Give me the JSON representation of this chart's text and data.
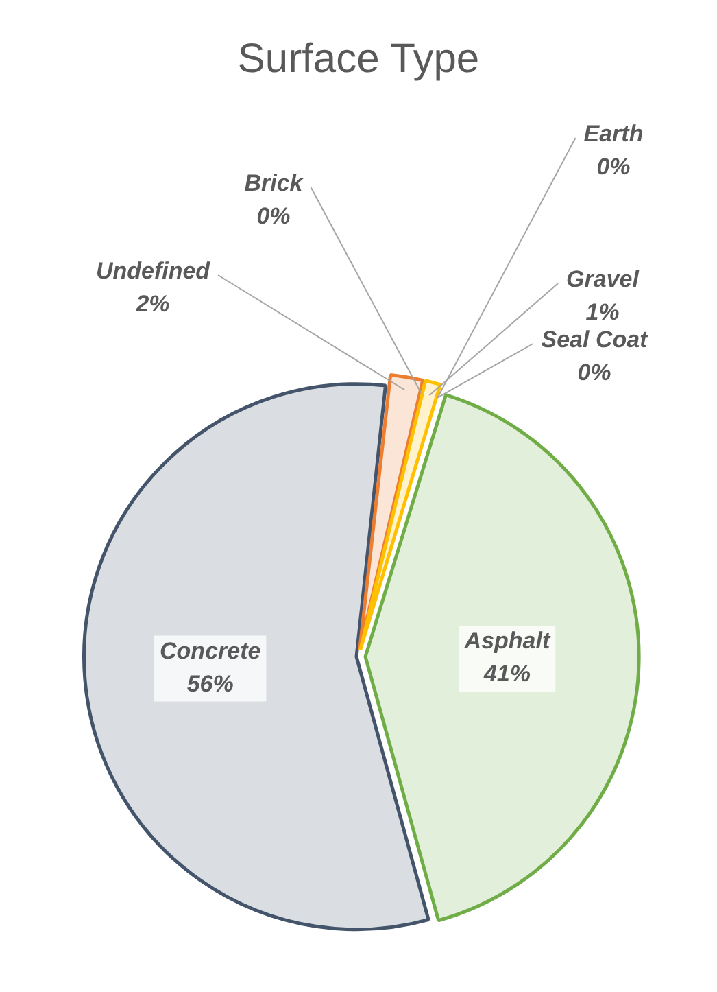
{
  "chart_data": {
    "type": "pie",
    "title": "Surface Type",
    "categories": [
      "Asphalt",
      "Concrete",
      "Undefined",
      "Brick",
      "Gravel",
      "Earth",
      "Seal Coat"
    ],
    "values": [
      41,
      56,
      2,
      0,
      1,
      0,
      0
    ],
    "colors": [
      "#70ad47",
      "#44546a",
      "#ed7d31",
      "#a5a5a5",
      "#ffc000",
      "#264478",
      "#5b9bd5"
    ],
    "value_labels": [
      "41%",
      "56%",
      "2%",
      "0%",
      "1%",
      "0%",
      "0%"
    ]
  }
}
